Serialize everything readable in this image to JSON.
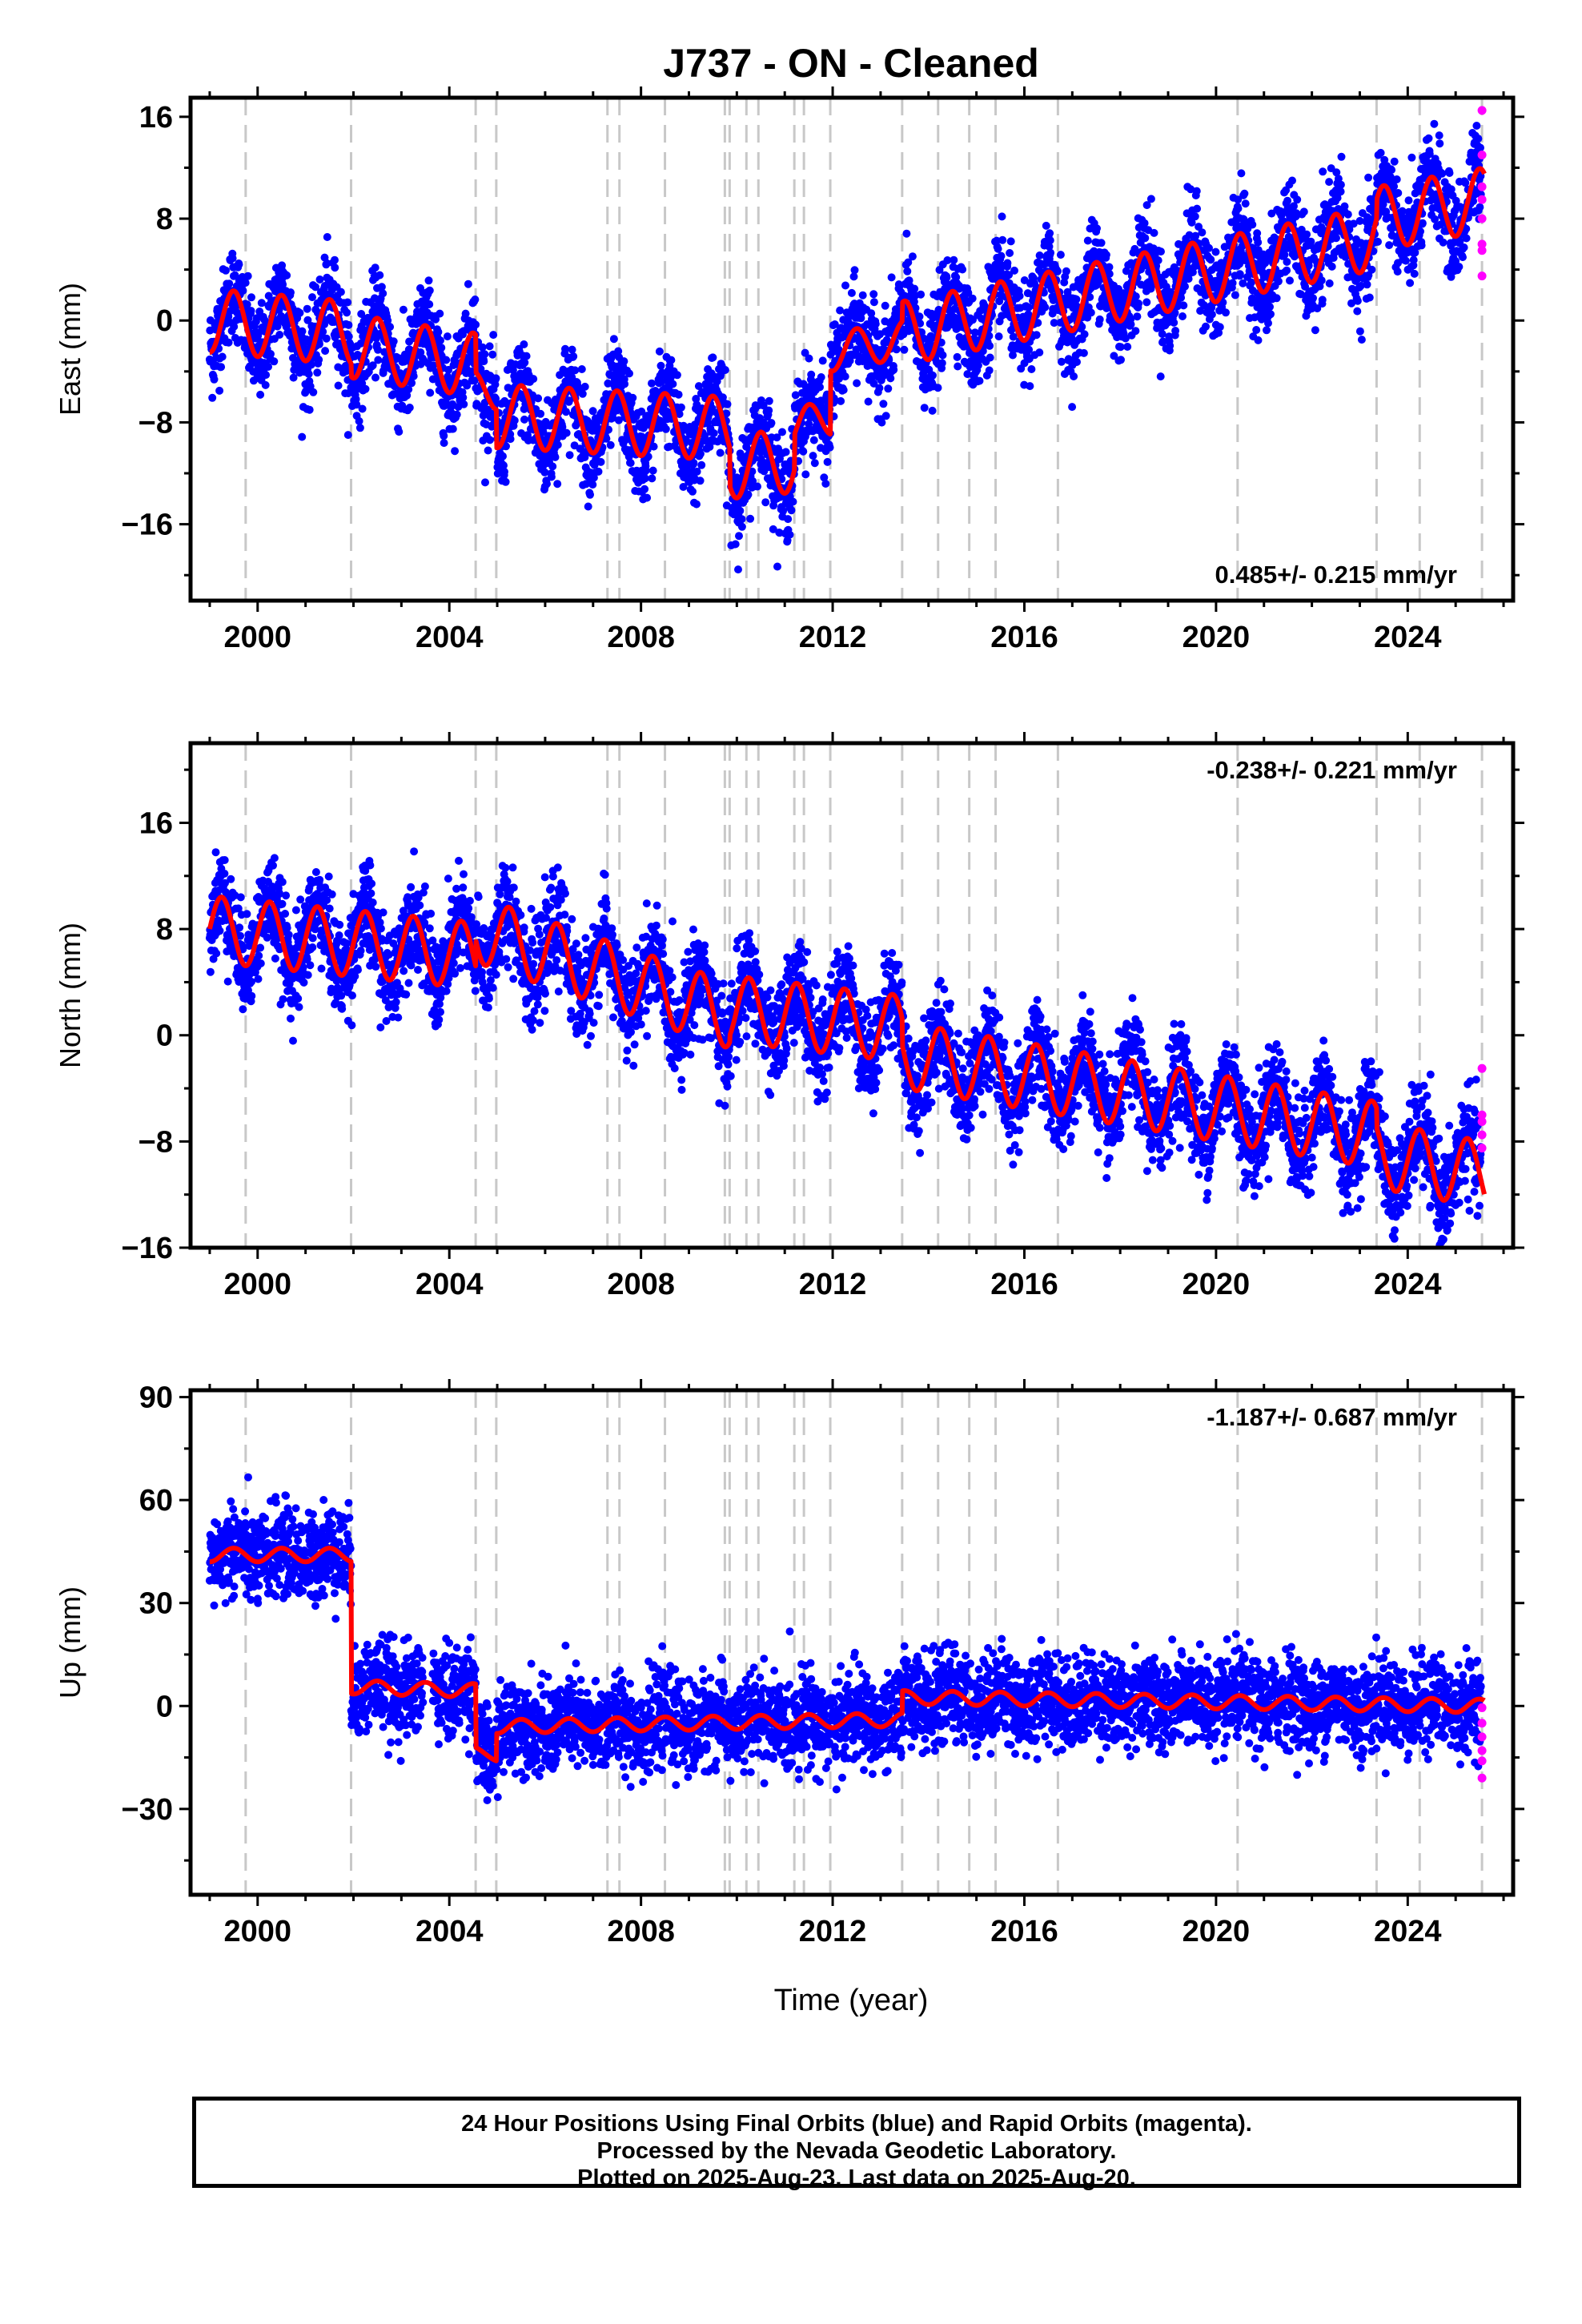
{
  "title": "J737  - ON - Cleaned",
  "xlabel": "Time (year)",
  "footer": {
    "line1": "24 Hour Positions Using Final Orbits (blue) and Rapid Orbits (magenta).",
    "line2": "Processed by the Nevada Geodetic Laboratory.",
    "line3": "Plotted on 2025-Aug-23. Last data on 2025-Aug-20."
  },
  "colors": {
    "final_orbits": "#0000ff",
    "rapid_orbits": "#ff00ff",
    "model": "#ff0000",
    "event_lines": "#c8c8c8"
  },
  "chart_data": [
    {
      "type": "scatter",
      "component": "East",
      "ylabel": "East (mm)",
      "xlim": [
        1998.6,
        2026.2
      ],
      "ylim": [
        -22,
        17.5
      ],
      "yticks": [
        -16,
        -8,
        0,
        8,
        16
      ],
      "xticks": [
        2000,
        2004,
        2008,
        2012,
        2016,
        2020,
        2024
      ],
      "rate": "0.485+/- 0.215 mm/yr",
      "rate_position": "bottom-right",
      "event_lines": [
        1999.75,
        2001.95,
        2004.55,
        2004.98,
        2007.3,
        2007.55,
        2008.5,
        2009.75,
        2009.85,
        2010.2,
        2010.45,
        2011.2,
        2011.4,
        2011.95,
        2013.45,
        2014.2,
        2014.85,
        2015.4,
        2016.7,
        2020.45,
        2023.35,
        2024.25,
        2025.55
      ],
      "model": {
        "segments": [
          {
            "x0": 1999.0,
            "x1": 2001.95,
            "trend0": 0.0,
            "trend1": -1.0,
            "amp": 2.5,
            "period": 1.0,
            "phase": 0.25
          },
          {
            "x0": 2001.95,
            "x1": 2004.55,
            "trend0": -2.0,
            "trend1": -3.5,
            "amp": 2.5,
            "period": 1.0,
            "phase": 0.25
          },
          {
            "x0": 2004.55,
            "x1": 2004.98,
            "trend0": -5.5,
            "trend1": -5.5,
            "amp": 1.5,
            "period": 1.0,
            "phase": 0.25
          },
          {
            "x0": 2004.98,
            "x1": 2009.85,
            "trend0": -7.5,
            "trend1": -8.5,
            "amp": 2.5,
            "period": 1.0,
            "phase": 0.25
          },
          {
            "x0": 2009.85,
            "x1": 2011.2,
            "trend0": -11.5,
            "trend1": -11.0,
            "amp": 2.5,
            "period": 1.0,
            "phase": 0.25
          },
          {
            "x0": 2011.2,
            "x1": 2011.95,
            "trend0": -8.5,
            "trend1": -7.5,
            "amp": 1.5,
            "period": 1.0,
            "phase": 0.25
          },
          {
            "x0": 2011.95,
            "x1": 2013.45,
            "trend0": -2.5,
            "trend1": -1.5,
            "amp": 1.5,
            "period": 1.0,
            "phase": 0.25
          },
          {
            "x0": 2013.45,
            "x1": 2023.35,
            "trend0": -1.0,
            "trend1": 6.5,
            "amp": 2.5,
            "period": 1.0,
            "phase": 0.25
          },
          {
            "x0": 2023.35,
            "x1": 2025.6,
            "trend0": 8.0,
            "trend1": 9.5,
            "amp": 2.5,
            "period": 1.0,
            "phase": 0.25
          }
        ]
      },
      "rapid_points": [
        [
          2025.55,
          16.5
        ],
        [
          2025.55,
          13.0
        ],
        [
          2025.55,
          10.5
        ],
        [
          2025.55,
          9.5
        ],
        [
          2025.55,
          8.0
        ],
        [
          2025.55,
          6.0
        ],
        [
          2025.55,
          5.5
        ],
        [
          2025.55,
          3.5
        ]
      ]
    },
    {
      "type": "scatter",
      "component": "North",
      "ylabel": "North (mm)",
      "xlim": [
        1998.6,
        2026.2
      ],
      "ylim": [
        -16,
        22
      ],
      "yticks": [
        -16,
        -8,
        0,
        8,
        16
      ],
      "xticks": [
        2000,
        2004,
        2008,
        2012,
        2016,
        2020,
        2024
      ],
      "rate": "-0.238+/- 0.221 mm/yr",
      "rate_position": "top-right",
      "event_lines": [
        1999.75,
        2001.95,
        2004.55,
        2004.98,
        2007.3,
        2007.55,
        2008.5,
        2009.75,
        2009.85,
        2010.2,
        2010.45,
        2011.2,
        2011.4,
        2011.95,
        2013.45,
        2014.2,
        2014.85,
        2015.4,
        2016.7,
        2020.45,
        2023.35,
        2024.25,
        2025.55
      ],
      "model": {
        "segments": [
          {
            "x0": 1999.0,
            "x1": 2004.55,
            "trend0": 8.0,
            "trend1": 6.0,
            "amp": 2.5,
            "period": 1.0,
            "phase": 0.0
          },
          {
            "x0": 2004.55,
            "x1": 2009.85,
            "trend0": 8.0,
            "trend1": 1.5,
            "amp": 2.5,
            "period": 1.0,
            "phase": 0.0
          },
          {
            "x0": 2009.85,
            "x1": 2013.45,
            "trend0": 2.0,
            "trend1": 0.5,
            "amp": 2.5,
            "period": 1.0,
            "phase": 0.0
          },
          {
            "x0": 2013.45,
            "x1": 2023.35,
            "trend0": -1.5,
            "trend1": -7.5,
            "amp": 2.5,
            "period": 1.0,
            "phase": 0.0
          },
          {
            "x0": 2023.35,
            "x1": 2025.6,
            "trend0": -9.0,
            "trend1": -10.5,
            "amp": 2.5,
            "period": 1.0,
            "phase": 0.0
          }
        ]
      },
      "rapid_points": [
        [
          2025.55,
          -2.5
        ],
        [
          2025.55,
          -6.0
        ],
        [
          2025.55,
          -6.5
        ],
        [
          2025.55,
          -7.5
        ],
        [
          2025.55,
          -8.5
        ]
      ]
    },
    {
      "type": "scatter",
      "component": "Up",
      "ylabel": "Up (mm)",
      "xlim": [
        1998.6,
        2026.2
      ],
      "ylim": [
        -55,
        92
      ],
      "yticks": [
        -30,
        0,
        30,
        60,
        90
      ],
      "xticks": [
        2000,
        2004,
        2008,
        2012,
        2016,
        2020,
        2024
      ],
      "rate": "-1.187+/- 0.687 mm/yr",
      "rate_position": "top-right",
      "event_lines": [
        1999.75,
        2001.95,
        2004.55,
        2004.98,
        2007.3,
        2007.55,
        2008.5,
        2009.75,
        2009.85,
        2010.2,
        2010.45,
        2011.2,
        2011.4,
        2011.95,
        2013.45,
        2014.2,
        2014.85,
        2015.4,
        2016.7,
        2020.45,
        2023.35,
        2024.25,
        2025.55
      ],
      "model": {
        "segments": [
          {
            "x0": 1999.0,
            "x1": 2001.95,
            "trend0": 44.0,
            "trend1": 44.0,
            "amp": 2.0,
            "period": 1.0,
            "phase": 0.25
          },
          {
            "x0": 2001.95,
            "x1": 2004.55,
            "trend0": 5.5,
            "trend1": 4.5,
            "amp": 2.0,
            "period": 1.0,
            "phase": 0.25
          },
          {
            "x0": 2004.55,
            "x1": 2004.98,
            "trend0": -13.0,
            "trend1": -15.0,
            "amp": 1.0,
            "period": 1.0,
            "phase": 0.25
          },
          {
            "x0": 2004.98,
            "x1": 2013.45,
            "trend0": -6.0,
            "trend1": -4.0,
            "amp": 2.0,
            "period": 1.0,
            "phase": 0.25
          },
          {
            "x0": 2013.45,
            "x1": 2025.6,
            "trend0": 2.5,
            "trend1": 0.0,
            "amp": 2.0,
            "period": 1.0,
            "phase": 0.25
          }
        ]
      },
      "rapid_points": [
        [
          2025.55,
          -0.5
        ],
        [
          2025.55,
          -5.0
        ],
        [
          2025.55,
          -9.0
        ],
        [
          2025.55,
          -13.0
        ],
        [
          2025.55,
          -16.0
        ],
        [
          2025.55,
          -21.0
        ]
      ]
    }
  ]
}
